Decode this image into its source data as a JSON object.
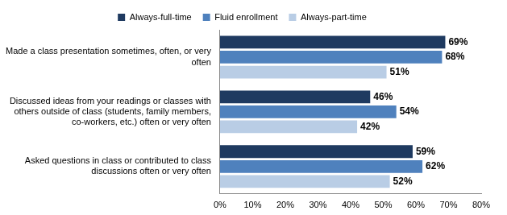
{
  "chart_data": {
    "type": "bar",
    "orientation": "horizontal",
    "categories": [
      "Made a class presentation sometimes, often, or very often",
      "Discussed ideas from your readings or classes with others outside of class (students, family members, co-workers, etc.) often or very often",
      "Asked questions in class or contributed to class discussions often or very often"
    ],
    "series": [
      {
        "name": "Always-full-time",
        "color": "#1f3a60",
        "values": [
          69,
          46,
          59
        ],
        "value_labels": [
          "69%",
          "46%",
          "59%"
        ]
      },
      {
        "name": "Fluid enrollment",
        "color": "#4f81bd",
        "values": [
          68,
          54,
          62
        ],
        "value_labels": [
          "68%",
          "54%",
          "62%"
        ]
      },
      {
        "name": "Always-part-time",
        "color": "#b9cde5",
        "values": [
          51,
          42,
          52
        ],
        "value_labels": [
          "51%",
          "42%",
          "52%"
        ]
      }
    ],
    "xlim": [
      0,
      80
    ],
    "xticks": [
      {
        "value": 0,
        "label": "0%"
      },
      {
        "value": 10,
        "label": "10%"
      },
      {
        "value": 20,
        "label": "20%"
      },
      {
        "value": 30,
        "label": "30%"
      },
      {
        "value": 40,
        "label": "40%"
      },
      {
        "value": 50,
        "label": "50%"
      },
      {
        "value": 60,
        "label": "60%"
      },
      {
        "value": 70,
        "label": "70%"
      },
      {
        "value": 80,
        "label": "80%"
      }
    ],
    "grid": false,
    "legend": "top",
    "data_labels": true
  }
}
